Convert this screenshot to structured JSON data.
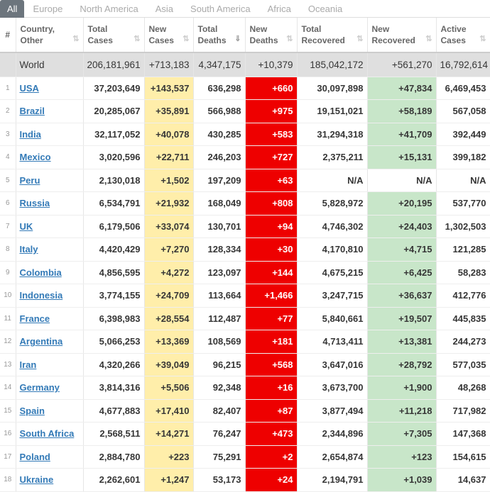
{
  "tabs": [
    "All",
    "Europe",
    "North America",
    "Asia",
    "South America",
    "Africa",
    "Oceania"
  ],
  "active_tab": "All",
  "colors": {
    "new_cases_bg": "#ffeeaa",
    "new_deaths_bg": "#ee0000",
    "new_recovered_bg": "#c8e6c9",
    "world_row_bg": "#dfdfdf",
    "link": "#337ab7"
  },
  "columns": [
    {
      "l1": "#",
      "l2": ""
    },
    {
      "l1": "Country,",
      "l2": "Other"
    },
    {
      "l1": "Total",
      "l2": "Cases"
    },
    {
      "l1": "New",
      "l2": "Cases"
    },
    {
      "l1": "Total",
      "l2": "Deaths"
    },
    {
      "l1": "New",
      "l2": "Deaths"
    },
    {
      "l1": "Total",
      "l2": "Recovered"
    },
    {
      "l1": "New",
      "l2": "Recovered"
    },
    {
      "l1": "Active",
      "l2": "Cases"
    }
  ],
  "sorted_column": "Total Deaths",
  "world": [
    "",
    "World",
    "206,181,961",
    "+713,183",
    "4,347,175",
    "+10,379",
    "185,042,172",
    "+561,270",
    "16,792,614"
  ],
  "rows": [
    [
      "1",
      "USA",
      "37,203,649",
      "+143,537",
      "636,298",
      "+660",
      "30,097,898",
      "+47,834",
      "6,469,453"
    ],
    [
      "2",
      "Brazil",
      "20,285,067",
      "+35,891",
      "566,988",
      "+975",
      "19,151,021",
      "+58,189",
      "567,058"
    ],
    [
      "3",
      "India",
      "32,117,052",
      "+40,078",
      "430,285",
      "+583",
      "31,294,318",
      "+41,709",
      "392,449"
    ],
    [
      "4",
      "Mexico",
      "3,020,596",
      "+22,711",
      "246,203",
      "+727",
      "2,375,211",
      "+15,131",
      "399,182"
    ],
    [
      "5",
      "Peru",
      "2,130,018",
      "+1,502",
      "197,209",
      "+63",
      "N/A",
      "N/A",
      "N/A"
    ],
    [
      "6",
      "Russia",
      "6,534,791",
      "+21,932",
      "168,049",
      "+808",
      "5,828,972",
      "+20,195",
      "537,770"
    ],
    [
      "7",
      "UK",
      "6,179,506",
      "+33,074",
      "130,701",
      "+94",
      "4,746,302",
      "+24,403",
      "1,302,503"
    ],
    [
      "8",
      "Italy",
      "4,420,429",
      "+7,270",
      "128,334",
      "+30",
      "4,170,810",
      "+4,715",
      "121,285"
    ],
    [
      "9",
      "Colombia",
      "4,856,595",
      "+4,272",
      "123,097",
      "+144",
      "4,675,215",
      "+6,425",
      "58,283"
    ],
    [
      "10",
      "Indonesia",
      "3,774,155",
      "+24,709",
      "113,664",
      "+1,466",
      "3,247,715",
      "+36,637",
      "412,776"
    ],
    [
      "11",
      "France",
      "6,398,983",
      "+28,554",
      "112,487",
      "+77",
      "5,840,661",
      "+19,507",
      "445,835"
    ],
    [
      "12",
      "Argentina",
      "5,066,253",
      "+13,369",
      "108,569",
      "+181",
      "4,713,411",
      "+13,381",
      "244,273"
    ],
    [
      "13",
      "Iran",
      "4,320,266",
      "+39,049",
      "96,215",
      "+568",
      "3,647,016",
      "+28,792",
      "577,035"
    ],
    [
      "14",
      "Germany",
      "3,814,316",
      "+5,506",
      "92,348",
      "+16",
      "3,673,700",
      "+1,900",
      "48,268"
    ],
    [
      "15",
      "Spain",
      "4,677,883",
      "+17,410",
      "82,407",
      "+87",
      "3,877,494",
      "+11,218",
      "717,982"
    ],
    [
      "16",
      "South Africa",
      "2,568,511",
      "+14,271",
      "76,247",
      "+473",
      "2,344,896",
      "+7,305",
      "147,368"
    ],
    [
      "17",
      "Poland",
      "2,884,780",
      "+223",
      "75,291",
      "+2",
      "2,654,874",
      "+123",
      "154,615"
    ],
    [
      "18",
      "Ukraine",
      "2,262,601",
      "+1,247",
      "53,173",
      "+24",
      "2,194,791",
      "+1,039",
      "14,637"
    ]
  ]
}
